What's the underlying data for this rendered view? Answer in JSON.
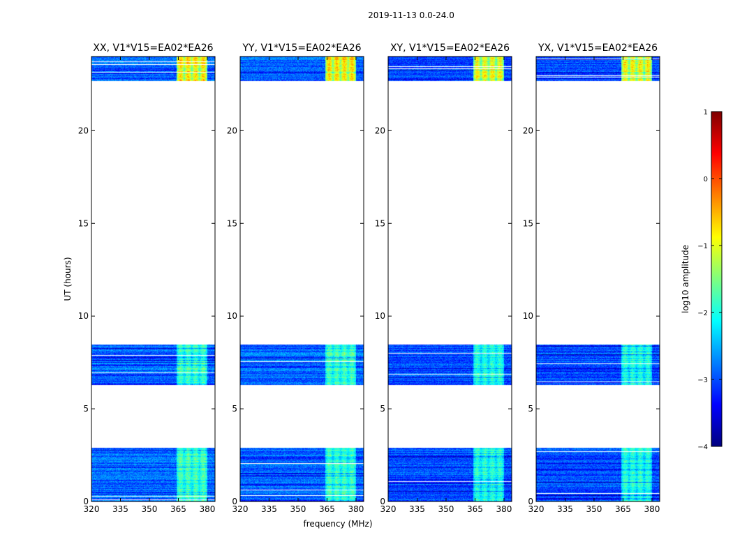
{
  "chart_data": {
    "type": "heatmap",
    "suptitle": "2019-11-13 0.0-24.0",
    "xlabel": "frequency (MHz)",
    "ylabel": "UT (hours)",
    "xlim": [
      320,
      384
    ],
    "ylim": [
      0,
      24
    ],
    "xticks": [
      320,
      335,
      350,
      365,
      380
    ],
    "yticks": [
      0,
      5,
      10,
      15,
      20
    ],
    "panels": [
      {
        "title": "XX, V1*V15=EA02*EA26"
      },
      {
        "title": "YY, V1*V15=EA02*EA26"
      },
      {
        "title": "XY, V1*V15=EA02*EA26"
      },
      {
        "title": "YX, V1*V15=EA02*EA26"
      }
    ],
    "data_time_ranges": [
      [
        0,
        2.9
      ],
      [
        6.3,
        8.5
      ],
      [
        22.7,
        24
      ]
    ],
    "rfi_band_mhz": [
      364,
      380
    ],
    "colorbar": {
      "label": "log10 amplitude",
      "range": [
        -4,
        1
      ],
      "ticks": [
        1,
        0,
        -1,
        -2,
        -3,
        -4
      ],
      "colormap": [
        "#00007f",
        "#0000ff",
        "#007fff",
        "#00ffff",
        "#7fff7f",
        "#ffff00",
        "#ff7f00",
        "#ff0000",
        "#7f0000"
      ]
    }
  }
}
